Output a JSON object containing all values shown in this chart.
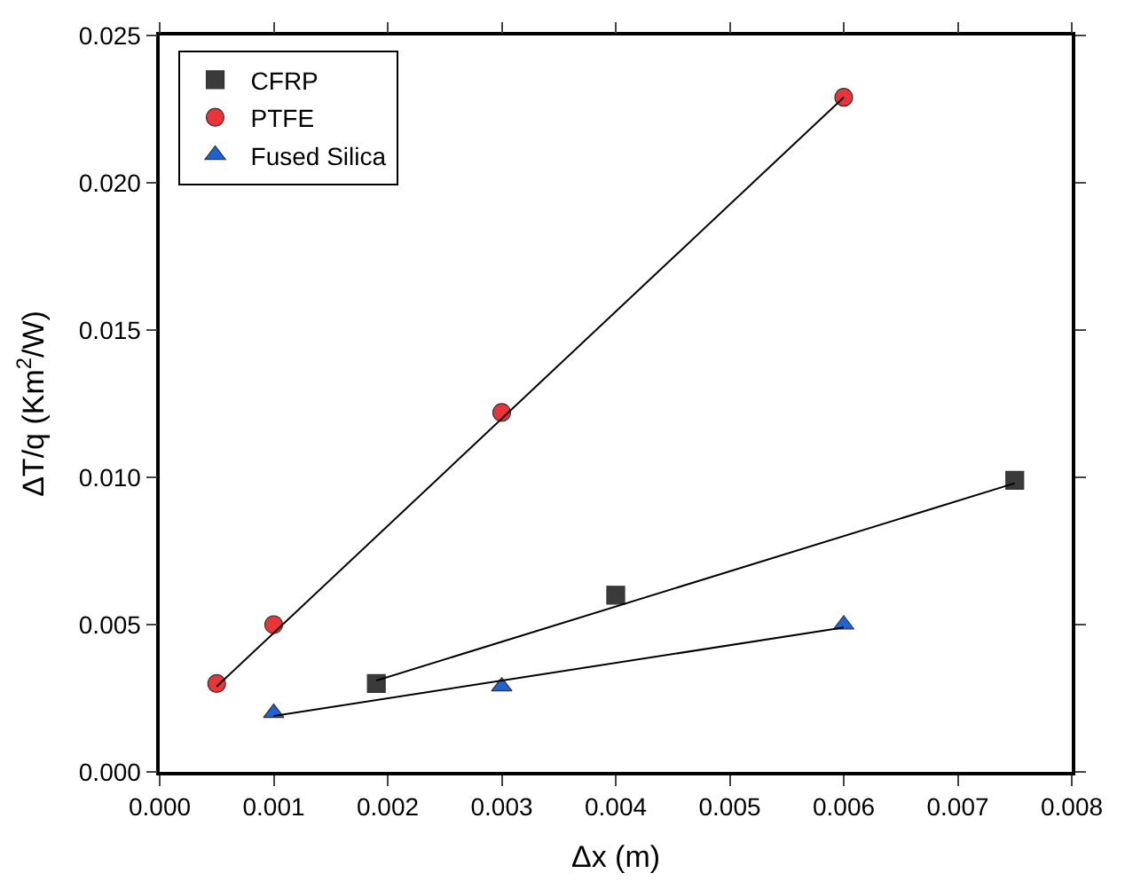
{
  "chart_data": {
    "type": "scatter",
    "xlabel": "Δx (m)",
    "ylabel": "ΔT/q (Km$^{2}$/W)",
    "series": [
      {
        "name": "CFRP",
        "marker": "square",
        "color": "#3a3a3a",
        "x": [
          0.0019,
          0.004,
          0.0075
        ],
        "values": [
          0.003,
          0.006,
          0.0099
        ]
      },
      {
        "name": "PTFE",
        "marker": "circle",
        "color": "#e8343a",
        "x": [
          0.0005,
          0.001,
          0.003,
          0.006
        ],
        "values": [
          0.003,
          0.005,
          0.0122,
          0.0229
        ]
      },
      {
        "name": "Fused Silica",
        "marker": "triangle",
        "color": "#1f62d6",
        "x": [
          0.001,
          0.003,
          0.006
        ],
        "values": [
          0.002,
          0.0029,
          0.005
        ]
      },
      {
        "type": "line",
        "marker": "none",
        "line_style": "solid",
        "color": "#000000",
        "x": [
          0.0019,
          0.0075
        ],
        "values": [
          0.0031,
          0.0098
        ]
      },
      {
        "type": "line",
        "marker": "none",
        "line_style": "solid",
        "color": "#000000",
        "x": [
          0.0005,
          0.006
        ],
        "values": [
          0.0029,
          0.0229
        ]
      },
      {
        "type": "line",
        "marker": "none",
        "line_style": "solid",
        "color": "#000000",
        "x": [
          0.001,
          0.006
        ],
        "values": [
          0.0019,
          0.0049
        ]
      }
    ],
    "xlim": [
      0,
      0.008
    ],
    "ylim": [
      0,
      0.025
    ],
    "xticks": [
      {
        "value": 0,
        "label": "0.000"
      },
      {
        "value": 0.001,
        "label": "0.001"
      },
      {
        "value": 0.002,
        "label": "0.002"
      },
      {
        "value": 0.003,
        "label": "0.003"
      },
      {
        "value": 0.004,
        "label": "0.004"
      },
      {
        "value": 0.005,
        "label": "0.005"
      },
      {
        "value": 0.006,
        "label": "0.006"
      },
      {
        "value": 0.007,
        "label": "0.007"
      },
      {
        "value": 0.008,
        "label": "0.008"
      }
    ],
    "yticks": [
      {
        "value": 0,
        "label": "0.000"
      },
      {
        "value": 0.005,
        "label": "0.005"
      },
      {
        "value": 0.01,
        "label": "0.010"
      },
      {
        "value": 0.015,
        "label": "0.015"
      },
      {
        "value": 0.02,
        "label": "0.020"
      },
      {
        "value": 0.025,
        "label": "0.025"
      }
    ],
    "legend": "top left"
  }
}
